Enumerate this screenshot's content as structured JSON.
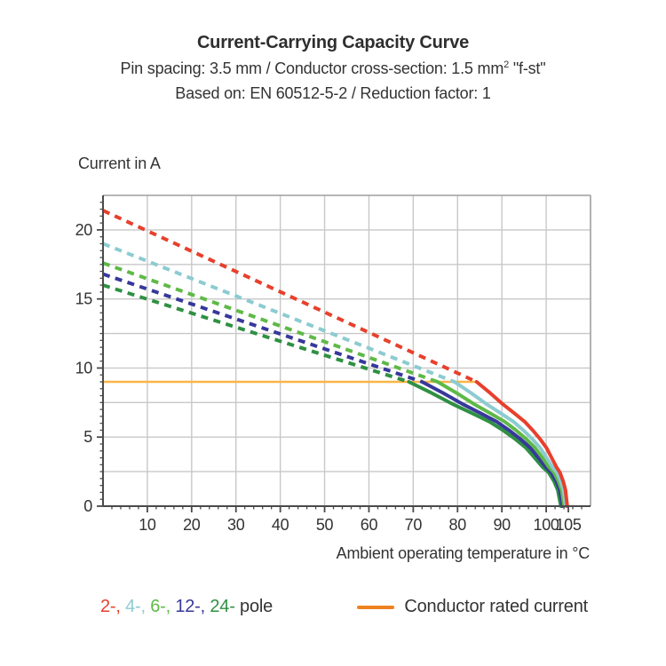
{
  "header": {
    "title": "Current-Carrying Capacity Curve",
    "subtitle1_pre": "Pin spacing: 3.5 mm / Conductor cross-section: 1.5 mm",
    "subtitle1_sup": "2",
    "subtitle1_post": " \"f-st\"",
    "subtitle2": "Based on: EN 60512-5-2 / Reduction factor: 1"
  },
  "chart_data": {
    "type": "line",
    "title": "Current-Carrying Capacity Curve",
    "xlabel": "Ambient operating temperature in °C",
    "ylabel": "Current in A",
    "xlim": [
      0,
      110
    ],
    "ylim": [
      0,
      22.5
    ],
    "grid": true,
    "x_grid_step": 10,
    "y_grid_step": 2.5,
    "x_major_ticks": [
      10,
      20,
      30,
      40,
      50,
      60,
      70,
      80,
      90,
      100,
      105
    ],
    "x_tick_labels": [
      "10",
      "20",
      "30",
      "40",
      "50",
      "60",
      "70",
      "80",
      "90",
      "100",
      "105"
    ],
    "x_minor_tick_step": 2,
    "y_major_ticks": [
      0,
      5,
      10,
      15,
      20
    ],
    "y_tick_labels": [
      "0",
      "5",
      "10",
      "15",
      "20"
    ],
    "y_minor_tick_step": 0.5,
    "rated_current": {
      "value_A": 9,
      "x_start": 0,
      "x_end": 84.3,
      "line_color": "#FBB547"
    },
    "series": [
      {
        "name": "24-pole",
        "color": "#2F9043",
        "current_at_0C": 16.0,
        "dashed_until_x": 69.0,
        "current_at_limit": 9,
        "zero_current_x": 103.3
      },
      {
        "name": "12-pole",
        "color": "#37389B",
        "current_at_0C": 16.8,
        "dashed_until_x": 72.0,
        "current_at_limit": 9,
        "zero_current_x": 103.7
      },
      {
        "name": "6-pole",
        "color": "#5FB947",
        "current_at_0C": 17.6,
        "dashed_until_x": 75.5,
        "current_at_limit": 9,
        "zero_current_x": 104.05
      },
      {
        "name": "4-pole",
        "color": "#8CCBD1",
        "current_at_0C": 19.0,
        "dashed_until_x": 79.3,
        "current_at_limit": 9,
        "zero_current_x": 104.4
      },
      {
        "name": "2-pole",
        "color": "#E7402C",
        "current_at_0C": 21.4,
        "dashed_until_x": 84.3,
        "current_at_limit": 9,
        "zero_current_x": 104.75
      }
    ],
    "solid_drop_shape": {
      "comment_t_is_fraction_between_limit_and_zero_x": true,
      "t": [
        0,
        0.15,
        0.29,
        0.42,
        0.53,
        0.62,
        0.7,
        0.77,
        0.82,
        0.88,
        0.92,
        0.955,
        0.98,
        1
      ],
      "f": [
        1,
        0.91,
        0.82,
        0.745,
        0.68,
        0.61,
        0.54,
        0.47,
        0.4,
        0.315,
        0.27,
        0.2,
        0.13,
        0
      ]
    },
    "style": {
      "grid_color": "#C8C8C8",
      "frame_color": "#9E9E9E",
      "axis_color": "#4A4A4A",
      "tick_label_color": "#333333",
      "dash_pattern": [
        8,
        6.5
      ],
      "line_width": 4
    }
  },
  "legend": {
    "pole_items": [
      {
        "label": "2-,",
        "color": "#E7402C"
      },
      {
        "label": "4-,",
        "color": "#8CCBD1"
      },
      {
        "label": "6-,",
        "color": "#5FB947"
      },
      {
        "label": "12-,",
        "color": "#37389B"
      },
      {
        "label": "24-",
        "color": "#2F9043"
      }
    ],
    "pole_suffix": "pole",
    "pole_suffix_color": "#333333",
    "rated_label": "Conductor rated current",
    "rated_swatch_color": "#EF8220"
  }
}
